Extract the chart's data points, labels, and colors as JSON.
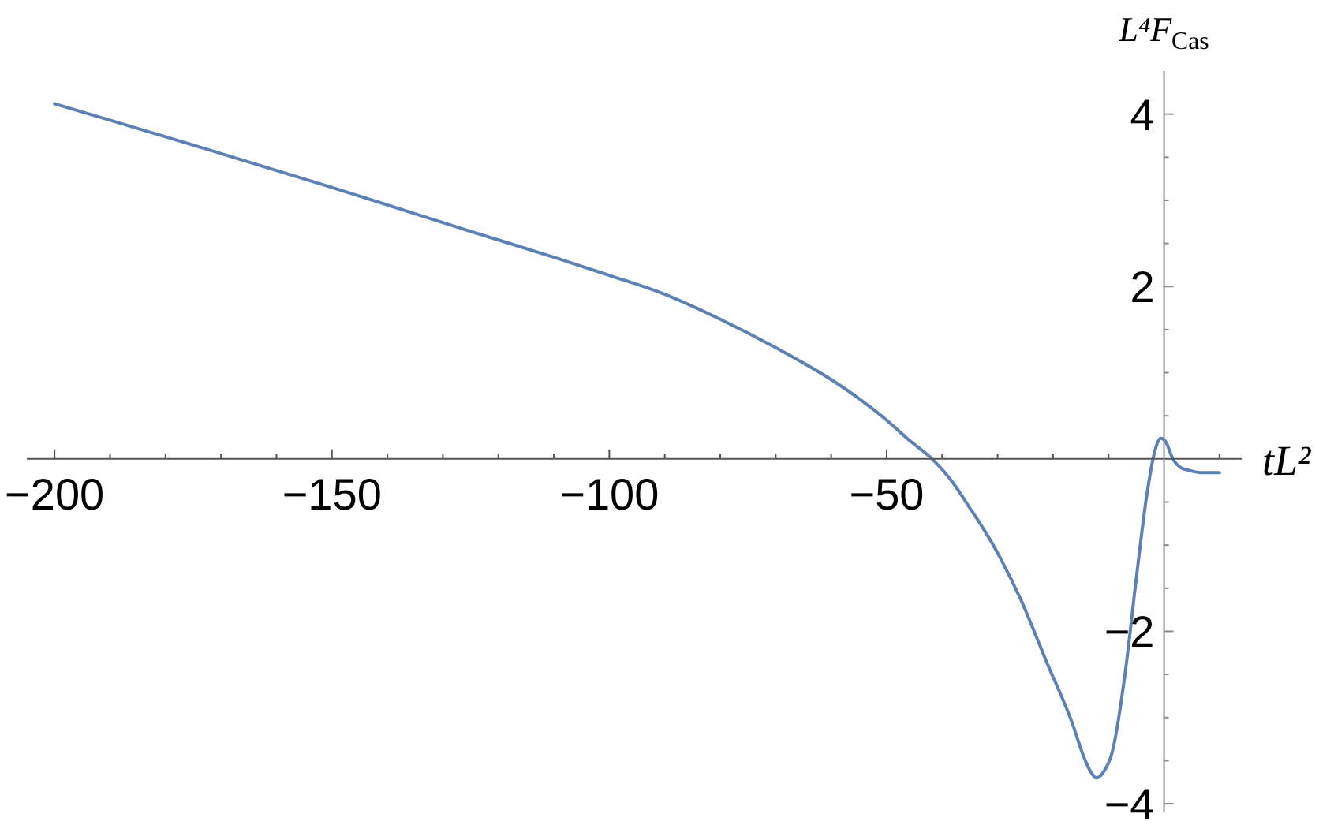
{
  "chart_data": {
    "type": "line",
    "xlabel": "tL²",
    "ylabel": "L⁴F$_{Cas}$",
    "x": [
      -200,
      -190,
      -175,
      -150,
      -125,
      -110,
      -100,
      -90,
      -80,
      -70,
      -60,
      -55,
      -50,
      -46,
      -41.8,
      -38,
      -35.4,
      -30.7,
      -25.9,
      -21.2,
      -16.4,
      -14.5,
      -13.2,
      -12.2,
      -11,
      -9.3,
      -7,
      -5.1,
      -3.2,
      -1.7,
      -0.6,
      0.3,
      1.6,
      3,
      4.4,
      7,
      10
    ],
    "series": [
      {
        "color": "#5e81b5",
        "values": [
          4.12,
          3.93,
          3.64,
          3.15,
          2.64,
          2.34,
          2.13,
          1.91,
          1.62,
          1.29,
          0.92,
          0.7,
          0.45,
          0.22,
          0,
          -0.28,
          -0.53,
          -1.01,
          -1.62,
          -2.35,
          -3.09,
          -3.45,
          -3.63,
          -3.7,
          -3.64,
          -3.39,
          -2.48,
          -1.44,
          -0.46,
          0.08,
          0.24,
          0.2,
          0,
          -0.1,
          -0.13,
          -0.16,
          -0.16
        ]
      }
    ],
    "xlim": [
      -205,
      14
    ],
    "ylim": [
      -4.1,
      4.5
    ],
    "xticks": [
      {
        "value": -200,
        "label": "−200"
      },
      {
        "value": -190,
        "label": null
      },
      {
        "value": -180,
        "label": null
      },
      {
        "value": -170,
        "label": null
      },
      {
        "value": -160,
        "label": null
      },
      {
        "value": -150,
        "label": "−150"
      },
      {
        "value": -140,
        "label": null
      },
      {
        "value": -130,
        "label": null
      },
      {
        "value": -120,
        "label": null
      },
      {
        "value": -110,
        "label": null
      },
      {
        "value": -100,
        "label": "−100"
      },
      {
        "value": -90,
        "label": null
      },
      {
        "value": -80,
        "label": null
      },
      {
        "value": -70,
        "label": null
      },
      {
        "value": -60,
        "label": null
      },
      {
        "value": -50,
        "label": "−50"
      },
      {
        "value": -40,
        "label": null
      },
      {
        "value": -30,
        "label": null
      },
      {
        "value": -20,
        "label": null
      },
      {
        "value": -10,
        "label": null
      },
      {
        "value": 10,
        "label": null
      }
    ],
    "yticks": [
      {
        "value": -4,
        "label": "−4"
      },
      {
        "value": -3.5,
        "label": null
      },
      {
        "value": -3,
        "label": null
      },
      {
        "value": -2.5,
        "label": null
      },
      {
        "value": -2,
        "label": "−2"
      },
      {
        "value": -1.5,
        "label": null
      },
      {
        "value": -1,
        "label": null
      },
      {
        "value": -0.5,
        "label": null
      },
      {
        "value": 0.5,
        "label": null
      },
      {
        "value": 1,
        "label": null
      },
      {
        "value": 1.5,
        "label": null
      },
      2,
      {
        "value": 2.5,
        "label": null
      },
      {
        "value": 3,
        "label": null
      },
      {
        "value": 3.5,
        "label": null
      },
      4
    ],
    "marker": "none",
    "line_style": "solid"
  }
}
